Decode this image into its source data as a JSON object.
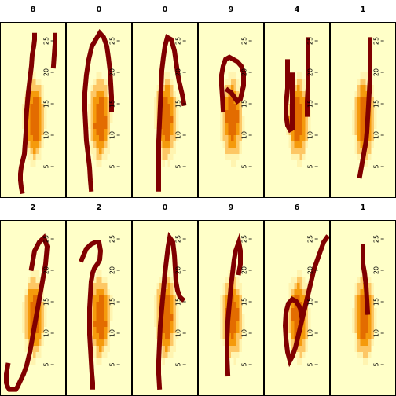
{
  "chart_data": {
    "type": "heatmap",
    "layout": {
      "rows": 2,
      "cols": 6
    },
    "axis_ticks": [
      "5",
      "10",
      "15",
      "20",
      "25"
    ],
    "ylim": [
      0,
      28
    ],
    "colors": {
      "background": "#ffffc8",
      "low": "#fff4b0",
      "light_orange": "#fdc765",
      "orange": "#f59a0c",
      "dark_orange": "#e36c00",
      "stroke": "#800000",
      "panel_border": "#000000"
    },
    "panels": [
      {
        "title": "8",
        "strokes": [
          [
            [
              44,
              74
            ],
            [
              44,
              72
            ],
            [
              43,
              69
            ],
            [
              42,
              67
            ],
            [
              41,
              65
            ],
            [
              40,
              60
            ],
            [
              39,
              57
            ],
            [
              38,
              54
            ],
            [
              37,
              51
            ],
            [
              36,
              48
            ],
            [
              35,
              44
            ],
            [
              34,
              40
            ],
            [
              33,
              35
            ],
            [
              33,
              30
            ],
            [
              32,
              25
            ],
            [
              31,
              20
            ],
            [
              29,
              17
            ],
            [
              27,
              14
            ],
            [
              26,
              11
            ],
            [
              26,
              8
            ],
            [
              27,
              5
            ],
            [
              28,
              3
            ]
          ],
          [
            [
              70,
              74
            ],
            [
              70,
              70
            ],
            [
              69,
              65
            ],
            [
              68,
              60
            ]
          ]
        ]
      },
      {
        "title": "0",
        "strokes": [
          [
            [
              32,
              4
            ],
            [
              31,
              8
            ],
            [
              30,
              14
            ],
            [
              28,
              20
            ],
            [
              26,
              26
            ],
            [
              25,
              33
            ],
            [
              24,
              40
            ],
            [
              24,
              48
            ],
            [
              26,
              56
            ],
            [
              29,
              63
            ],
            [
              33,
              69
            ],
            [
              38,
              72
            ],
            [
              43,
              75
            ],
            [
              48,
              73
            ],
            [
              52,
              69
            ],
            [
              54,
              64
            ],
            [
              56,
              58
            ],
            [
              57,
              52
            ],
            [
              58,
              46
            ],
            [
              58,
              40
            ]
          ]
        ]
      },
      {
        "title": "0",
        "strokes": [
          [
            [
              34,
              4
            ],
            [
              34,
              10
            ],
            [
              34,
              18
            ],
            [
              34,
              26
            ],
            [
              35,
              34
            ],
            [
              36,
              42
            ],
            [
              37,
              50
            ],
            [
              38,
              58
            ],
            [
              40,
              64
            ],
            [
              42,
              69
            ],
            [
              45,
              73
            ],
            [
              50,
              72
            ],
            [
              54,
              67
            ],
            [
              56,
              62
            ],
            [
              58,
              57
            ],
            [
              60,
              53
            ],
            [
              62,
              50
            ],
            [
              64,
              47
            ],
            [
              66,
              43
            ]
          ]
        ]
      },
      {
        "title": "9",
        "strokes": [
          [
            [
              32,
              40
            ],
            [
              31,
              46
            ],
            [
              30,
              51
            ],
            [
              30,
              56
            ],
            [
              32,
              60
            ],
            [
              35,
              63
            ],
            [
              40,
              64
            ],
            [
              45,
              63
            ],
            [
              50,
              62
            ],
            [
              55,
              60
            ],
            [
              58,
              57
            ],
            [
              58,
              51
            ],
            [
              56,
              48
            ],
            [
              54,
              45
            ],
            [
              50,
              44
            ],
            [
              46,
              46
            ],
            [
              42,
              48
            ],
            [
              38,
              49
            ]
          ]
        ]
      },
      {
        "title": "4",
        "strokes": [
          [
            [
              30,
              62
            ],
            [
              30,
              56
            ],
            [
              30,
              50
            ],
            [
              29,
              46
            ],
            [
              28,
              42
            ],
            [
              28,
              38
            ],
            [
              30,
              33
            ],
            [
              33,
              31
            ]
          ],
          [
            [
              36,
              56
            ],
            [
              36,
              50
            ],
            [
              36,
              44
            ],
            [
              36,
              38
            ],
            [
              36,
              32
            ]
          ],
          [
            [
              56,
              72
            ],
            [
              56,
              66
            ],
            [
              56,
              58
            ],
            [
              56,
              50
            ],
            [
              55,
              44
            ],
            [
              55,
              38
            ]
          ]
        ]
      },
      {
        "title": "1",
        "strokes": [
          [
            [
              51,
              72
            ],
            [
              51,
              66
            ],
            [
              51,
              60
            ],
            [
              51,
              54
            ],
            [
              50,
              48
            ],
            [
              49,
              42
            ],
            [
              48,
              36
            ],
            [
              47,
              30
            ],
            [
              46,
              26
            ],
            [
              44,
              22
            ],
            [
              42,
              18
            ],
            [
              40,
              14
            ],
            [
              38,
              10
            ]
          ]
        ]
      },
      {
        "title": "2",
        "strokes": [
          [
            [
              40,
              58
            ],
            [
              44,
              66
            ],
            [
              50,
              70
            ],
            [
              56,
              72
            ],
            [
              60,
              68
            ],
            [
              58,
              60
            ],
            [
              54,
              52
            ],
            [
              50,
              44
            ],
            [
              46,
              36
            ],
            [
              42,
              28
            ],
            [
              38,
              20
            ],
            [
              34,
              14
            ],
            [
              30,
              10
            ],
            [
              26,
              7
            ],
            [
              22,
              4
            ],
            [
              20,
              3
            ],
            [
              16,
              3
            ],
            [
              12,
              3
            ],
            [
              10,
              4
            ],
            [
              8,
              6
            ],
            [
              8,
              10
            ],
            [
              10,
              14
            ]
          ]
        ]
      },
      {
        "title": "2",
        "strokes": [
          [
            [
              20,
              62
            ],
            [
              26,
              67
            ],
            [
              32,
              69
            ],
            [
              38,
              70
            ],
            [
              42,
              70
            ],
            [
              44,
              66
            ],
            [
              43,
              62
            ],
            [
              40,
              60
            ],
            [
              36,
              58
            ],
            [
              34,
              56
            ],
            [
              32,
              52
            ],
            [
              31,
              46
            ],
            [
              30,
              40
            ],
            [
              30,
              34
            ],
            [
              30,
              28
            ],
            [
              31,
              22
            ],
            [
              32,
              16
            ],
            [
              33,
              10
            ],
            [
              34,
              6
            ],
            [
              34,
              4
            ]
          ]
        ]
      },
      {
        "title": "0",
        "strokes": [
          [
            [
              35,
              4
            ],
            [
              34,
              10
            ],
            [
              34,
              16
            ],
            [
              35,
              24
            ],
            [
              36,
              32
            ],
            [
              38,
              40
            ],
            [
              40,
              48
            ],
            [
              42,
              56
            ],
            [
              44,
              62
            ],
            [
              46,
              68
            ],
            [
              48,
              72
            ],
            [
              52,
              70
            ],
            [
              54,
              64
            ],
            [
              55,
              58
            ],
            [
              56,
              52
            ],
            [
              58,
              48
            ],
            [
              61,
              45
            ],
            [
              64,
              44
            ]
          ]
        ]
      },
      {
        "title": "9",
        "strokes": [
          [
            [
              38,
              10
            ],
            [
              37,
              18
            ],
            [
              37,
              26
            ],
            [
              38,
              34
            ],
            [
              40,
              42
            ],
            [
              42,
              50
            ],
            [
              44,
              56
            ],
            [
              46,
              62
            ],
            [
              48,
              66
            ],
            [
              50,
              68
            ],
            [
              52,
              70
            ],
            [
              54,
              66
            ],
            [
              54,
              60
            ],
            [
              52,
              56
            ]
          ]
        ]
      },
      {
        "title": "6",
        "strokes": [
          [
            [
              80,
              72
            ],
            [
              76,
              70
            ],
            [
              72,
              66
            ],
            [
              68,
              62
            ],
            [
              64,
              58
            ],
            [
              60,
              52
            ],
            [
              56,
              46
            ],
            [
              52,
              40
            ],
            [
              48,
              34
            ],
            [
              44,
              28
            ],
            [
              40,
              22
            ],
            [
              36,
              18
            ],
            [
              33,
              16
            ],
            [
              30,
              20
            ],
            [
              28,
              26
            ],
            [
              27,
              32
            ],
            [
              28,
              38
            ],
            [
              31,
              42
            ],
            [
              36,
              44
            ],
            [
              41,
              43
            ],
            [
              46,
              40
            ],
            [
              48,
              36
            ]
          ]
        ]
      },
      {
        "title": "1",
        "strokes": [
          [
            [
              42,
              68
            ],
            [
              42,
              64
            ],
            [
              42,
              60
            ],
            [
              44,
              56
            ],
            [
              46,
              50
            ],
            [
              47,
              44
            ],
            [
              48,
              38
            ]
          ]
        ]
      }
    ]
  }
}
